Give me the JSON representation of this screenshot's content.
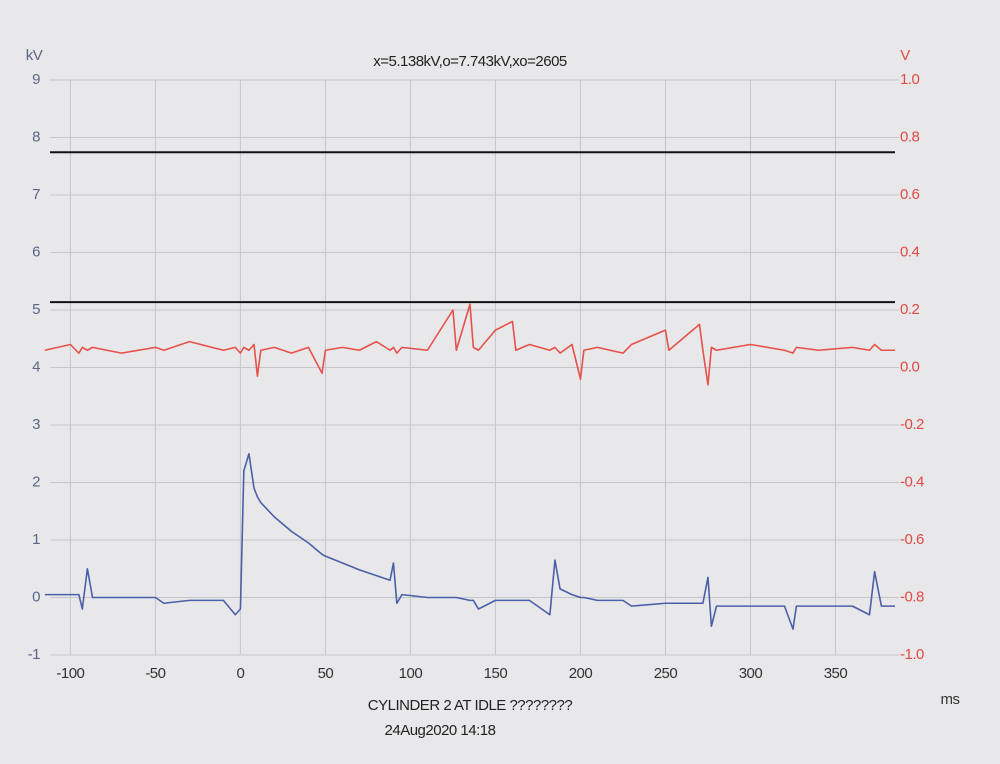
{
  "chart_data": {
    "type": "line",
    "title": "x=5.138kV,o=7.743kV,xo=2605",
    "y_label": "kV",
    "y2_label": "V",
    "x_label": "ms",
    "footer": [
      "CYLINDER 2 AT IDLE ????????",
      "24Aug2020 14:18"
    ],
    "grid": true,
    "xlim": [
      -112,
      385
    ],
    "xticks": [
      -100,
      -50,
      0,
      50,
      100,
      150,
      200,
      250,
      300,
      350
    ],
    "ylim": [
      -1,
      9
    ],
    "yticks": [
      -1,
      0,
      1,
      2,
      3,
      4,
      5,
      6,
      7,
      8,
      9
    ],
    "y2lim": [
      -1,
      1
    ],
    "y2ticks": [
      {
        "value": -1,
        "label": "-1.0"
      },
      -0.8,
      -0.6,
      -0.4,
      -0.2,
      {
        "value": 0,
        "label": "0.0"
      },
      0.2,
      0.4,
      0.6,
      0.8,
      {
        "value": 1,
        "label": "1.0"
      }
    ],
    "hlines": [
      {
        "value": 7.743,
        "color": "#111111"
      },
      {
        "value": 5.138,
        "color": "#111111"
      }
    ],
    "x": [
      -115,
      -100,
      -95,
      -93,
      -90,
      -87,
      -70,
      -50,
      -45,
      -30,
      -10,
      -3,
      0,
      2,
      5,
      8,
      10,
      12,
      20,
      30,
      40,
      48,
      50,
      60,
      70,
      80,
      88,
      90,
      92,
      95,
      110,
      125,
      127,
      135,
      137,
      140,
      150,
      160,
      162,
      170,
      182,
      185,
      188,
      195,
      200,
      202,
      210,
      225,
      230,
      250,
      252,
      270,
      272,
      275,
      277,
      280,
      300,
      320,
      325,
      327,
      340,
      360,
      370,
      373,
      377,
      385
    ],
    "series": [
      {
        "name": "kV",
        "color": "#4a5fa8",
        "values": [
          0.05,
          0.05,
          0.05,
          -0.2,
          0.5,
          0.0,
          0.0,
          0.0,
          -0.1,
          -0.05,
          -0.05,
          -0.3,
          -0.2,
          2.2,
          2.5,
          1.9,
          1.75,
          1.65,
          1.4,
          1.15,
          0.95,
          0.75,
          0.72,
          0.6,
          0.48,
          0.38,
          0.3,
          0.6,
          -0.1,
          0.05,
          0.0,
          0.0,
          0.0,
          -0.05,
          -0.05,
          -0.2,
          -0.05,
          -0.05,
          -0.05,
          -0.05,
          -0.3,
          0.65,
          0.15,
          0.05,
          0.0,
          0.0,
          -0.05,
          -0.05,
          -0.15,
          -0.1,
          -0.1,
          -0.1,
          -0.1,
          0.35,
          -0.5,
          -0.15,
          -0.15,
          -0.15,
          -0.55,
          -0.15,
          -0.15,
          -0.15,
          -0.3,
          0.45,
          -0.15,
          -0.15
        ]
      },
      {
        "name": "V",
        "color": "#e8504a",
        "axis": "y2",
        "values": [
          0.06,
          0.08,
          0.05,
          0.07,
          0.06,
          0.07,
          0.05,
          0.07,
          0.06,
          0.09,
          0.06,
          0.07,
          0.05,
          0.07,
          0.06,
          0.08,
          -0.03,
          0.06,
          0.07,
          0.05,
          0.07,
          -0.02,
          0.06,
          0.07,
          0.06,
          0.09,
          0.06,
          0.07,
          0.05,
          0.07,
          0.06,
          0.2,
          0.06,
          0.22,
          0.07,
          0.06,
          0.13,
          0.16,
          0.06,
          0.08,
          0.06,
          0.07,
          0.05,
          0.08,
          -0.04,
          0.06,
          0.07,
          0.05,
          0.08,
          0.13,
          0.06,
          0.15,
          0.06,
          -0.06,
          0.07,
          0.06,
          0.08,
          0.06,
          0.05,
          0.07,
          0.06,
          0.07,
          0.06,
          0.08,
          0.06,
          0.06
        ]
      }
    ]
  }
}
